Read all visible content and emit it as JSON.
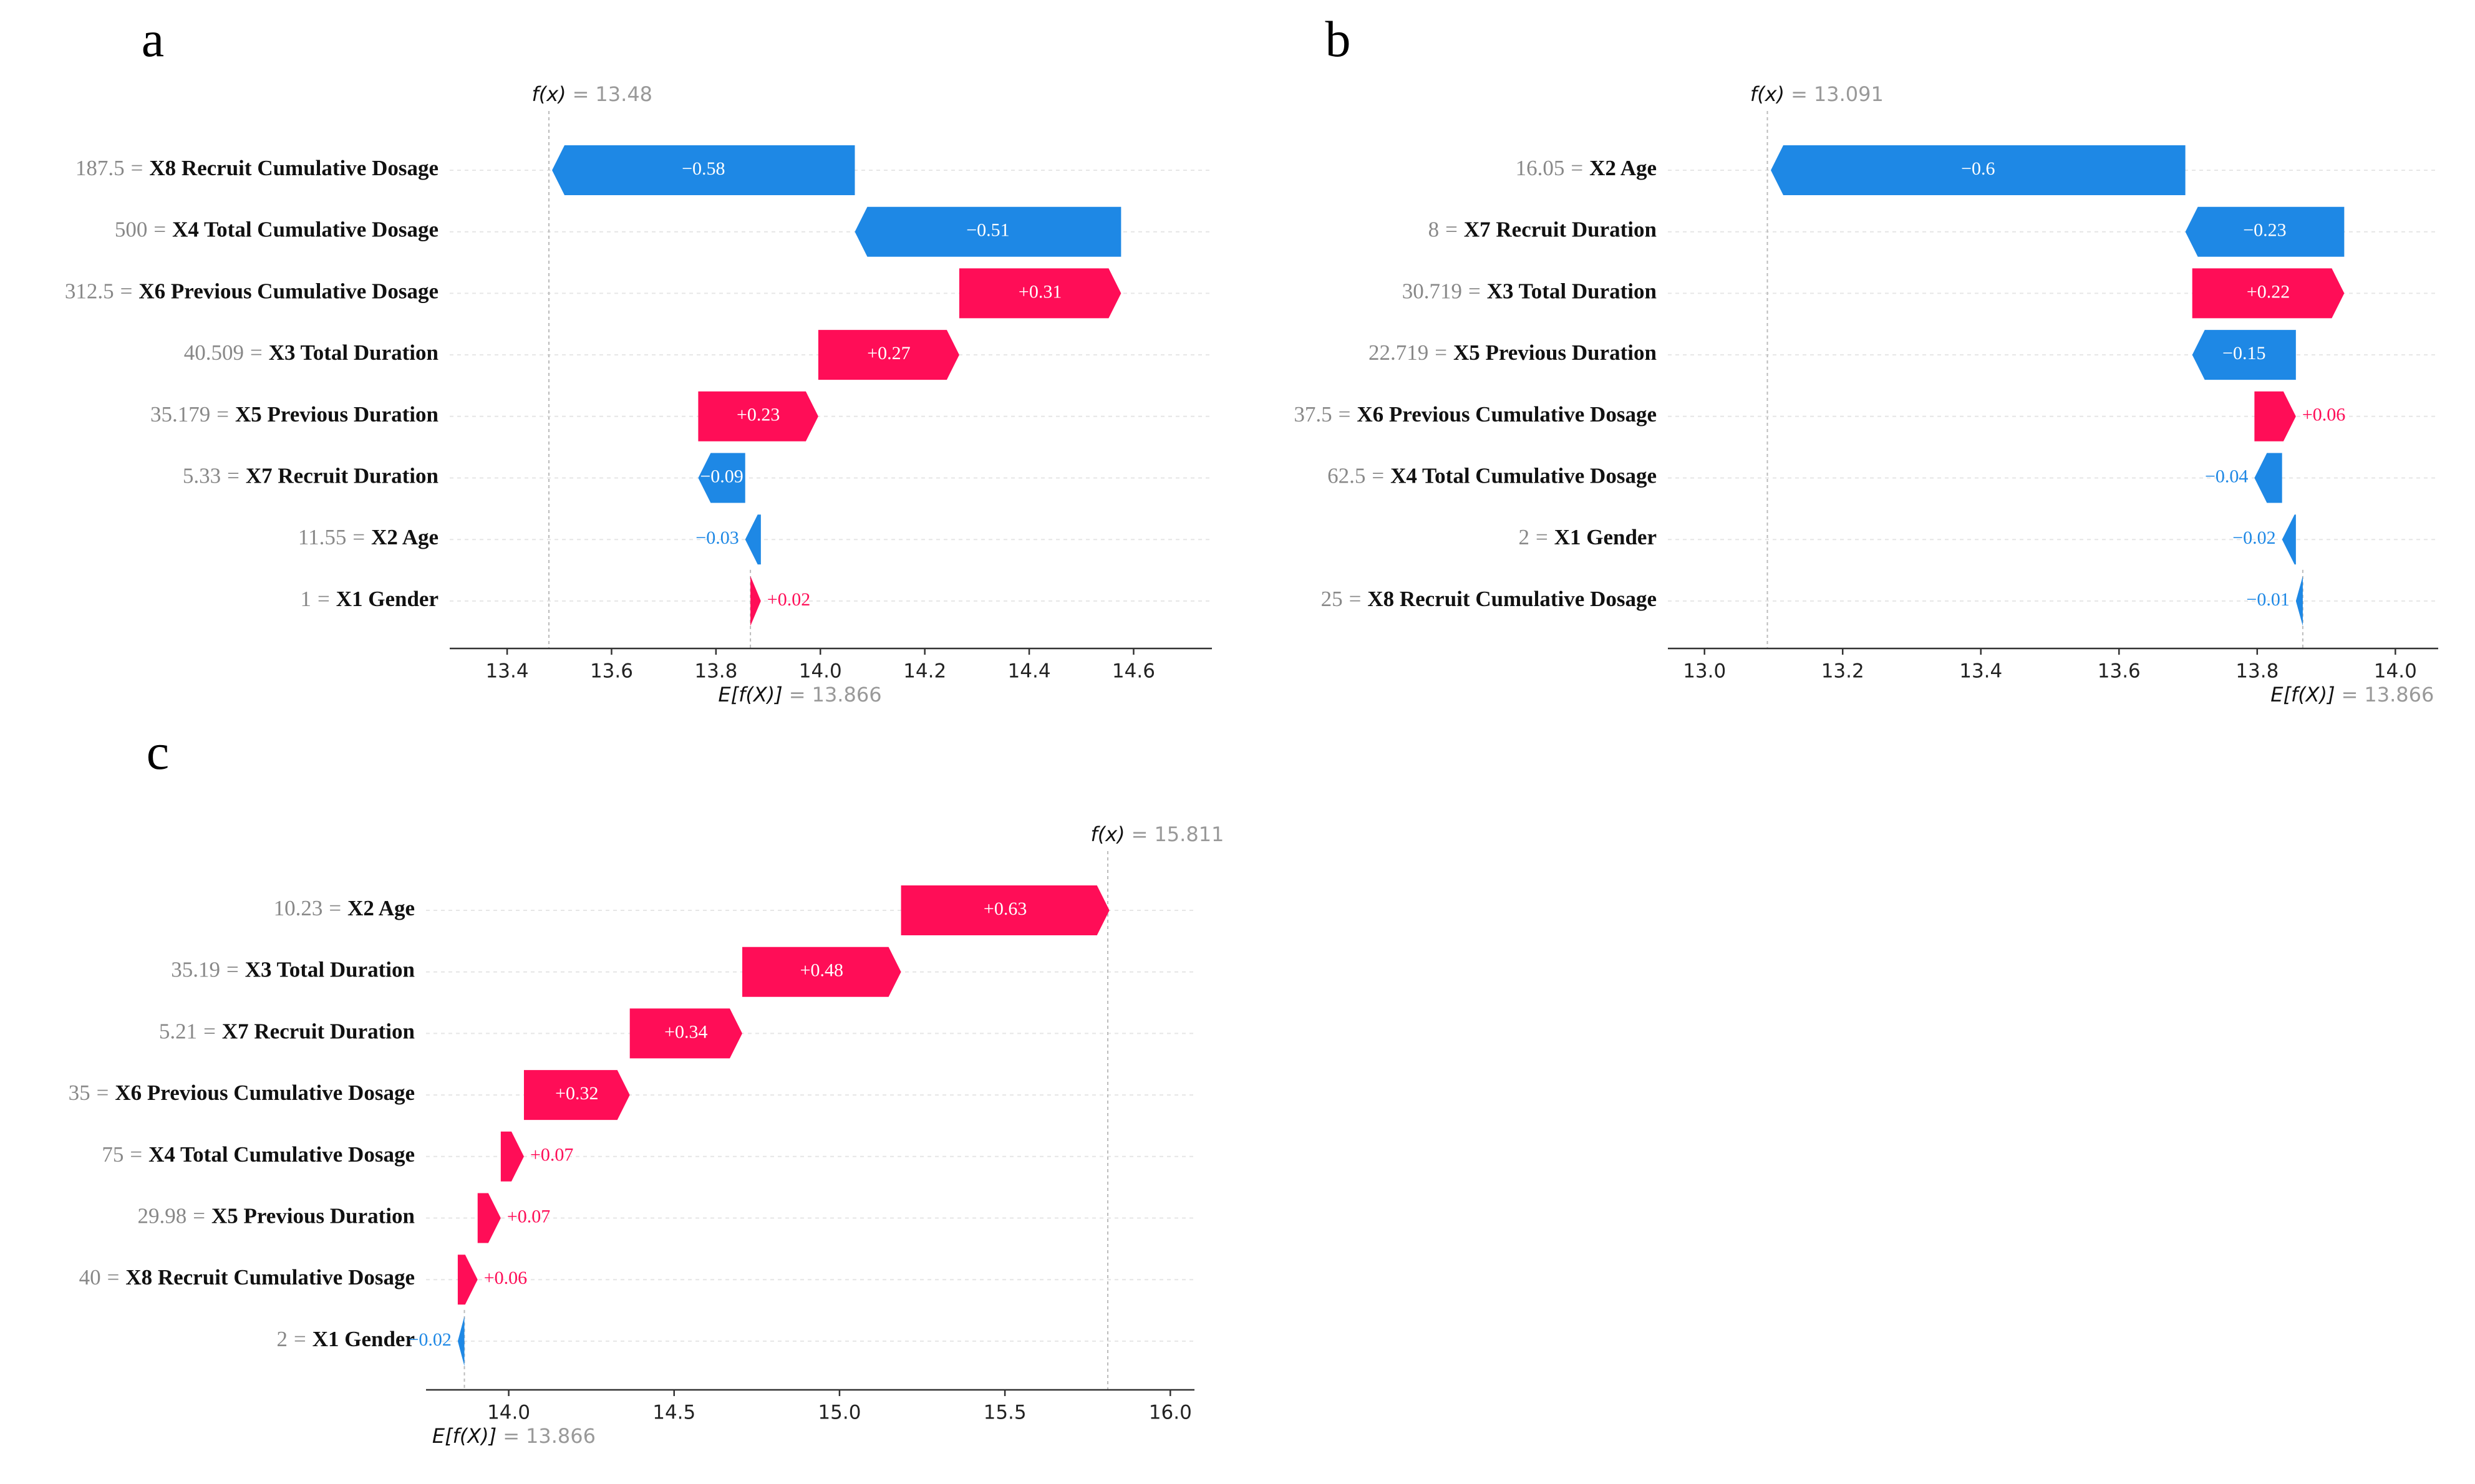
{
  "chart_data": [
    {
      "type": "waterfall",
      "panel_label": "a",
      "separator": "=",
      "fx_label": "f(x)",
      "fx": 13.48,
      "base_label": "E[f(X)]",
      "base": 13.866,
      "feature_values": [
        "187.5",
        "500",
        "312.5",
        "40.509",
        "35.179",
        "5.33",
        "11.55",
        "1"
      ],
      "categories": [
        "X8 Recruit Cumulative Dosage",
        "X4 Total Cumulative Dosage",
        "X6 Previous Cumulative Dosage",
        "X3 Total Duration",
        "X5 Previous Duration",
        "X7 Recruit Duration",
        "X2 Age",
        "X1 Gender"
      ],
      "values": [
        -0.58,
        -0.51,
        0.31,
        0.27,
        0.23,
        -0.09,
        -0.03,
        0.02
      ],
      "value_labels": [
        "−0.58",
        "−0.51",
        "+0.31",
        "+0.27",
        "+0.23",
        "−0.09",
        "−0.03",
        "+0.02"
      ],
      "colors": {
        "positive": "#ff0d57",
        "negative": "#1e88e5"
      },
      "xlim": [
        13.29,
        14.75
      ],
      "xticks": [
        13.4,
        13.6,
        13.8,
        {
          "value": 14,
          "label": "14.0"
        },
        14.2,
        14.4,
        14.6
      ]
    },
    {
      "type": "waterfall",
      "panel_label": "b",
      "separator": "=",
      "fx_label": "f(x)",
      "fx": 13.091,
      "base_label": "E[f(X)]",
      "base": 13.866,
      "feature_values": [
        "16.05",
        "8",
        "30.719",
        "22.719",
        "37.5",
        "62.5",
        "2",
        "25"
      ],
      "categories": [
        "X2 Age",
        "X7 Recruit Duration",
        "X3 Total Duration",
        "X5 Previous Duration",
        "X6 Previous Cumulative Dosage",
        "X4 Total Cumulative Dosage",
        "X1 Gender",
        "X8 Recruit Cumulative Dosage"
      ],
      "values": [
        -0.6,
        -0.23,
        0.22,
        -0.15,
        0.06,
        -0.04,
        -0.02,
        -0.01
      ],
      "value_labels": [
        "−0.6",
        "−0.23",
        "+0.22",
        "−0.15",
        "+0.06",
        "−0.04",
        "−0.02",
        "−0.01"
      ],
      "colors": {
        "positive": "#ff0d57",
        "negative": "#1e88e5"
      },
      "xlim": [
        12.947,
        14.062
      ],
      "xticks": [
        {
          "value": 13,
          "label": "13.0"
        },
        13.2,
        13.4,
        13.6,
        13.8,
        {
          "value": 14,
          "label": "14.0"
        }
      ]
    },
    {
      "type": "waterfall",
      "panel_label": "c",
      "separator": "=",
      "fx_label": "f(x)",
      "fx": 15.811,
      "base_label": "E[f(X)]",
      "base": 13.866,
      "feature_values": [
        "10.23",
        "35.19",
        "5.21",
        "35",
        "75",
        "29.98",
        "40",
        "2"
      ],
      "categories": [
        "X2 Age",
        "X3 Total Duration",
        "X7 Recruit Duration",
        "X6 Previous Cumulative Dosage",
        "X4 Total Cumulative Dosage",
        "X5 Previous Duration",
        "X8 Recruit Cumulative Dosage",
        "X1 Gender"
      ],
      "values": [
        0.63,
        0.48,
        0.34,
        0.32,
        0.07,
        0.07,
        0.06,
        -0.02
      ],
      "value_labels": [
        "+0.63",
        "+0.48",
        "+0.34",
        "+0.32",
        "+0.07",
        "+0.07",
        "+0.06",
        "−0.02"
      ],
      "colors": {
        "positive": "#ff0d57",
        "negative": "#1e88e5"
      },
      "xlim": [
        13.75,
        16.073
      ],
      "xticks": [
        {
          "value": 14,
          "label": "14.0"
        },
        14.5,
        {
          "value": 15,
          "label": "15.0"
        },
        15.5,
        {
          "value": 16,
          "label": "16.0"
        }
      ]
    }
  ]
}
